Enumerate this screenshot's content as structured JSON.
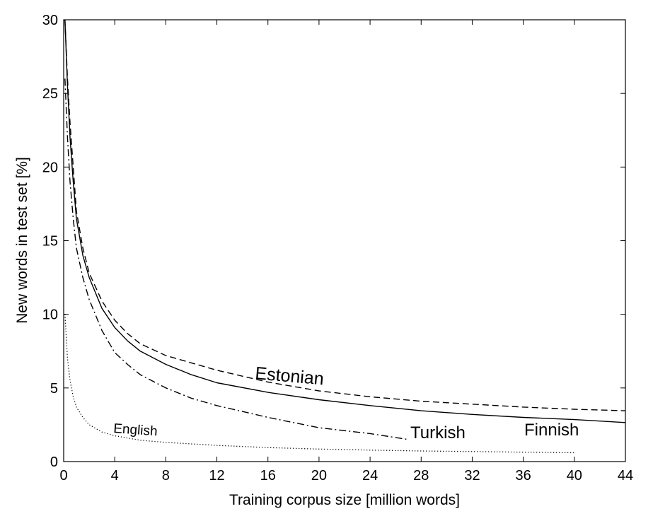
{
  "chart_data": {
    "type": "line",
    "title": "",
    "xlabel": "Training corpus size [million words]",
    "ylabel": "New words in test set [%]",
    "xlim": [
      0,
      44
    ],
    "ylim": [
      0,
      30
    ],
    "xticks": [
      0,
      4,
      8,
      12,
      16,
      20,
      24,
      28,
      32,
      36,
      40,
      44
    ],
    "yticks": [
      0,
      5,
      10,
      15,
      20,
      25,
      30
    ],
    "grid": false,
    "legend": "none",
    "series": [
      {
        "name": "Estonian",
        "style": "dashed",
        "color": "#000000",
        "points": [
          [
            0.1,
            30
          ],
          [
            0.3,
            26
          ],
          [
            0.5,
            23
          ],
          [
            0.75,
            20
          ],
          [
            1,
            17
          ],
          [
            1.5,
            14.5
          ],
          [
            2,
            12.8
          ],
          [
            3,
            10.9
          ],
          [
            4,
            9.6
          ],
          [
            5,
            8.7
          ],
          [
            6,
            8.0
          ],
          [
            8,
            7.2
          ],
          [
            10,
            6.7
          ],
          [
            12,
            6.2
          ],
          [
            16,
            5.4
          ],
          [
            20,
            4.8
          ],
          [
            24,
            4.4
          ],
          [
            28,
            4.1
          ],
          [
            32,
            3.9
          ],
          [
            36,
            3.7
          ],
          [
            40,
            3.55
          ],
          [
            44,
            3.45
          ]
        ]
      },
      {
        "name": "Finnish",
        "style": "solid",
        "color": "#000000",
        "points": [
          [
            0.1,
            30
          ],
          [
            0.3,
            25.5
          ],
          [
            0.5,
            22
          ],
          [
            0.75,
            19
          ],
          [
            1,
            16.5
          ],
          [
            1.5,
            14
          ],
          [
            2,
            12.5
          ],
          [
            3,
            10.4
          ],
          [
            4,
            9.1
          ],
          [
            5,
            8.2
          ],
          [
            6,
            7.5
          ],
          [
            8,
            6.6
          ],
          [
            10,
            5.9
          ],
          [
            12,
            5.35
          ],
          [
            16,
            4.7
          ],
          [
            20,
            4.2
          ],
          [
            24,
            3.8
          ],
          [
            28,
            3.45
          ],
          [
            32,
            3.2
          ],
          [
            36,
            3.0
          ],
          [
            40,
            2.85
          ],
          [
            44,
            2.65
          ]
        ]
      },
      {
        "name": "Turkish",
        "style": "dashdot",
        "color": "#000000",
        "points": [
          [
            0.1,
            26
          ],
          [
            0.3,
            22
          ],
          [
            0.5,
            19
          ],
          [
            0.75,
            16.5
          ],
          [
            1,
            14.5
          ],
          [
            1.5,
            12.5
          ],
          [
            2,
            11
          ],
          [
            3,
            8.9
          ],
          [
            4,
            7.4
          ],
          [
            5,
            6.6
          ],
          [
            6,
            5.9
          ],
          [
            8,
            5.0
          ],
          [
            10,
            4.3
          ],
          [
            12,
            3.8
          ],
          [
            16,
            3.0
          ],
          [
            20,
            2.3
          ],
          [
            24,
            1.9
          ],
          [
            27,
            1.5
          ]
        ]
      },
      {
        "name": "English",
        "style": "dotted",
        "color": "#000000",
        "points": [
          [
            0.1,
            10
          ],
          [
            0.3,
            7
          ],
          [
            0.5,
            5.5
          ],
          [
            0.75,
            4.4
          ],
          [
            1,
            3.7
          ],
          [
            1.5,
            3.0
          ],
          [
            2,
            2.5
          ],
          [
            3,
            2.0
          ],
          [
            4,
            1.75
          ],
          [
            6,
            1.45
          ],
          [
            8,
            1.3
          ],
          [
            12,
            1.1
          ],
          [
            16,
            0.95
          ],
          [
            20,
            0.85
          ],
          [
            24,
            0.78
          ],
          [
            28,
            0.72
          ],
          [
            32,
            0.68
          ],
          [
            36,
            0.64
          ],
          [
            40,
            0.6
          ]
        ]
      }
    ]
  }
}
